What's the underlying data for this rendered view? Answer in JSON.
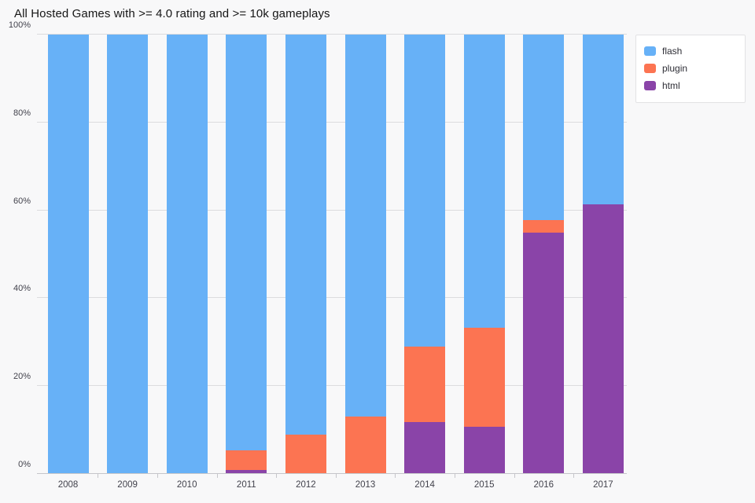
{
  "chart_data": {
    "type": "bar",
    "variant": "stacked-percent",
    "title": "All Hosted Games with >= 4.0 rating and >= 10k gameplays",
    "categories": [
      "2008",
      "2009",
      "2010",
      "2011",
      "2012",
      "2013",
      "2014",
      "2015",
      "2016",
      "2017"
    ],
    "series": [
      {
        "name": "flash",
        "color": "#67B1F7",
        "values": [
          100,
          100,
          100,
          94.6,
          91.0,
          86.9,
          71.1,
          66.8,
          42.3,
          38.7
        ]
      },
      {
        "name": "plugin",
        "color": "#FC7452",
        "values": [
          0,
          0,
          0,
          4.5,
          9.0,
          13.1,
          17.1,
          22.4,
          2.7,
          0
        ]
      },
      {
        "name": "html",
        "color": "#8A44A8",
        "values": [
          0,
          0,
          0,
          0.9,
          0,
          0,
          11.8,
          10.8,
          55.0,
          61.3
        ]
      }
    ],
    "stack_order_bottom_to_top": [
      "html",
      "plugin",
      "flash"
    ],
    "xlabel": "",
    "ylabel": "",
    "ylim": [
      0,
      100
    ],
    "yticks": [
      0,
      20,
      40,
      60,
      80,
      100
    ],
    "ytick_labels": [
      "0%",
      "20%",
      "40%",
      "60%",
      "80%",
      "100%"
    ],
    "grid": true,
    "legend_position": "top-right",
    "colors": {
      "background": "#F8F8F9",
      "gridline": "#DCDCDE",
      "axis_line": "#C6C6CA",
      "tick_text": "#42424C",
      "title_text": "#161616",
      "legend_background": "#FFFFFF",
      "legend_border": "#E2E2E4"
    }
  }
}
